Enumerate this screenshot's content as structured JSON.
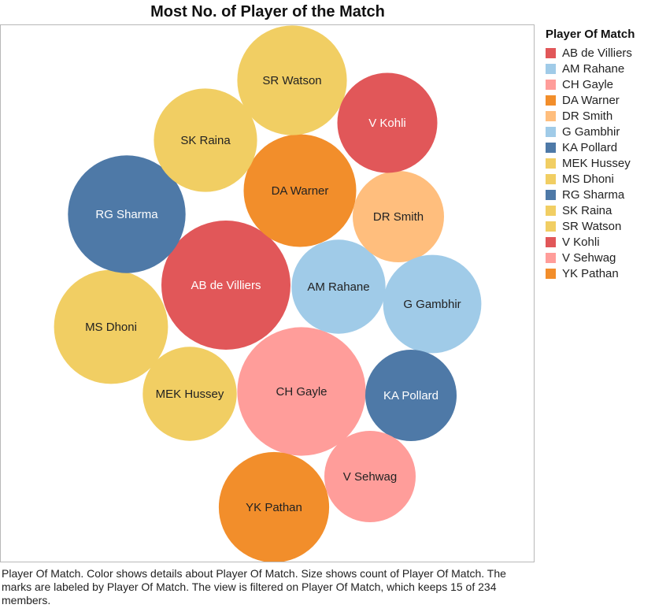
{
  "chart_data": {
    "type": "bubble",
    "title": "Most No. of Player of the Match",
    "legend": {
      "title": "Player Of Match",
      "placement": "right"
    },
    "series": [
      {
        "name": "AB de Villiers",
        "color": "#e15759",
        "label_color": "#ffffff",
        "relative_size": 1.0
      },
      {
        "name": "AM Rahane",
        "color": "#a0cbe8",
        "label_color": "#222222",
        "relative_size": 0.53
      },
      {
        "name": "CH Gayle",
        "color": "#ff9d9a",
        "label_color": "#222222",
        "relative_size": 0.99
      },
      {
        "name": "DA Warner",
        "color": "#f28e2b",
        "label_color": "#222222",
        "relative_size": 0.76
      },
      {
        "name": "DR Smith",
        "color": "#ffbe7d",
        "label_color": "#222222",
        "relative_size": 0.5
      },
      {
        "name": "G Gambhir",
        "color": "#a0cbe8",
        "label_color": "#222222",
        "relative_size": 0.58
      },
      {
        "name": "KA Pollard",
        "color": "#4e79a7",
        "label_color": "#ffffff",
        "relative_size": 0.5
      },
      {
        "name": "MEK Hussey",
        "color": "#f1ce63",
        "label_color": "#222222",
        "relative_size": 0.53
      },
      {
        "name": "MS Dhoni",
        "color": "#f1ce63",
        "label_color": "#222222",
        "relative_size": 0.78
      },
      {
        "name": "RG Sharma",
        "color": "#4e79a7",
        "label_color": "#ffffff",
        "relative_size": 0.83
      },
      {
        "name": "SK Raina",
        "color": "#f1ce63",
        "label_color": "#222222",
        "relative_size": 0.64
      },
      {
        "name": "SR Watson",
        "color": "#f1ce63",
        "label_color": "#222222",
        "relative_size": 0.72
      },
      {
        "name": "V Kohli",
        "color": "#e15759",
        "label_color": "#ffffff",
        "relative_size": 0.6
      },
      {
        "name": "V Sehwag",
        "color": "#ff9d9a",
        "label_color": "#222222",
        "relative_size": 0.5
      },
      {
        "name": "YK Pathan",
        "color": "#f28e2b",
        "label_color": "#222222",
        "relative_size": 0.73
      }
    ]
  },
  "caption": "Player Of Match.  Color shows details about Player Of Match.  Size shows count of Player Of Match.  The marks are labeled by Player Of Match. The view is filtered on Player Of Match, which keeps 15 of 234 members."
}
